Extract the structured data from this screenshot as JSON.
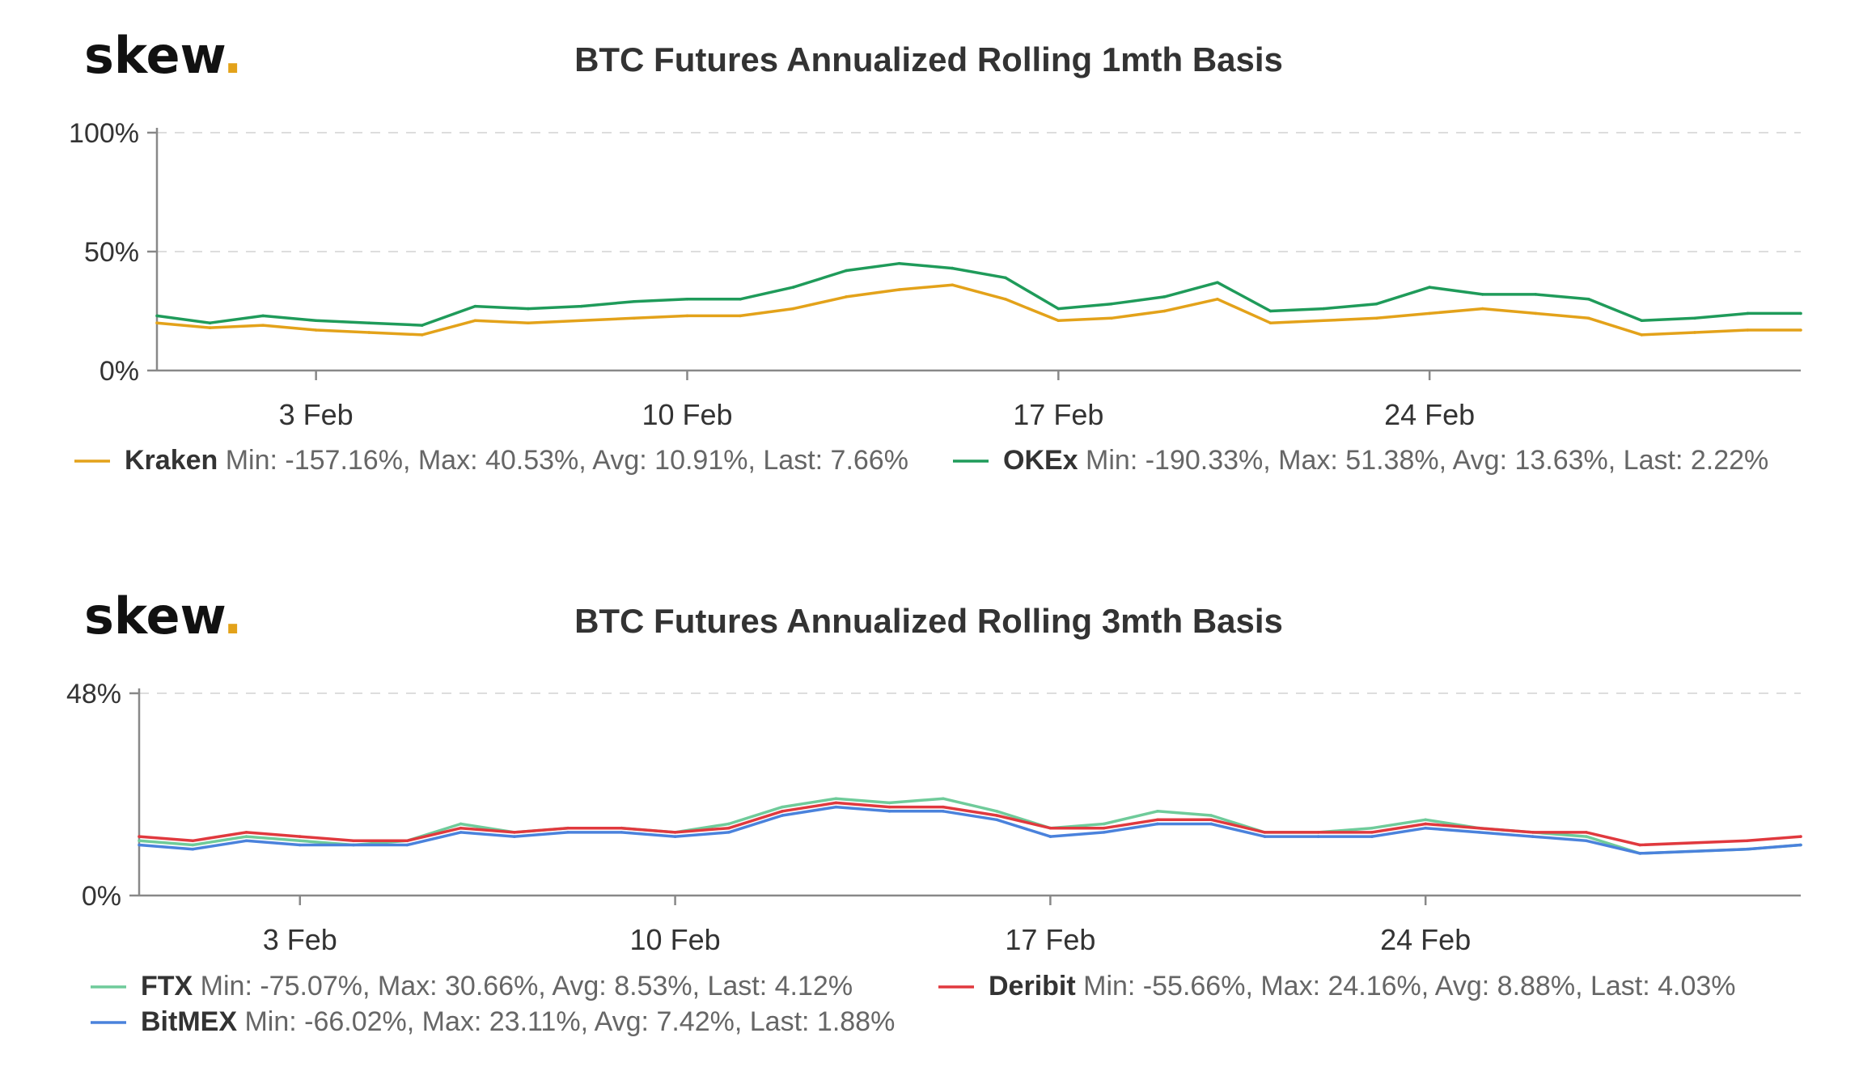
{
  "brand": {
    "word": "skew",
    "dot": "."
  },
  "colors": {
    "Kraken": "#e3a21a",
    "OKEx": "#1f9b5a",
    "FTX": "#6fcb9a",
    "Deribit": "#e0393e",
    "BitMEX": "#4a82dc"
  },
  "chart_data": [
    {
      "type": "line",
      "title": "BTC Futures Annualized Rolling 1mth Basis",
      "x_start": "2020-01-31",
      "x_end": "2020-03-02",
      "x_ticks": [
        "3 Feb",
        "10 Feb",
        "17 Feb",
        "24 Feb"
      ],
      "y_ticks": [
        "0%",
        "50%",
        "100%"
      ],
      "ylim": [
        0,
        100
      ],
      "grid": true,
      "legend_position": "bottom",
      "series": [
        {
          "name": "Kraken",
          "legend_text": "Min: -157.16%, Max: 40.53%, Avg: 10.91%, Last: 7.66%",
          "x": [
            "2020-01-31",
            "2020-02-01",
            "2020-02-02",
            "2020-02-03",
            "2020-02-04",
            "2020-02-05",
            "2020-02-06",
            "2020-02-07",
            "2020-02-08",
            "2020-02-09",
            "2020-02-10",
            "2020-02-11",
            "2020-02-12",
            "2020-02-13",
            "2020-02-14",
            "2020-02-15",
            "2020-02-16",
            "2020-02-17",
            "2020-02-18",
            "2020-02-19",
            "2020-02-20",
            "2020-02-21",
            "2020-02-22",
            "2020-02-23",
            "2020-02-24",
            "2020-02-25",
            "2020-02-26",
            "2020-02-27",
            "2020-02-28",
            "2020-02-29",
            "2020-03-01",
            "2020-03-02"
          ],
          "values": [
            20,
            18,
            19,
            17,
            16,
            15,
            21,
            20,
            21,
            22,
            23,
            23,
            26,
            31,
            34,
            36,
            30,
            21,
            22,
            25,
            30,
            20,
            21,
            22,
            24,
            26,
            24,
            22,
            15,
            16,
            17,
            17
          ]
        },
        {
          "name": "OKEx",
          "legend_text": "Min: -190.33%, Max: 51.38%, Avg: 13.63%, Last: 2.22%",
          "x": [
            "2020-01-31",
            "2020-02-01",
            "2020-02-02",
            "2020-02-03",
            "2020-02-04",
            "2020-02-05",
            "2020-02-06",
            "2020-02-07",
            "2020-02-08",
            "2020-02-09",
            "2020-02-10",
            "2020-02-11",
            "2020-02-12",
            "2020-02-13",
            "2020-02-14",
            "2020-02-15",
            "2020-02-16",
            "2020-02-17",
            "2020-02-18",
            "2020-02-19",
            "2020-02-20",
            "2020-02-21",
            "2020-02-22",
            "2020-02-23",
            "2020-02-24",
            "2020-02-25",
            "2020-02-26",
            "2020-02-27",
            "2020-02-28",
            "2020-02-29",
            "2020-03-01",
            "2020-03-02"
          ],
          "values": [
            23,
            20,
            23,
            21,
            20,
            19,
            27,
            26,
            27,
            29,
            30,
            30,
            35,
            42,
            45,
            43,
            39,
            26,
            28,
            31,
            37,
            25,
            26,
            28,
            35,
            32,
            32,
            30,
            21,
            22,
            24,
            24
          ]
        }
      ]
    },
    {
      "type": "line",
      "title": "BTC Futures Annualized Rolling 3mth Basis",
      "x_start": "2020-01-31",
      "x_end": "2020-03-02",
      "x_ticks": [
        "3 Feb",
        "10 Feb",
        "17 Feb",
        "24 Feb"
      ],
      "y_ticks": [
        "0%",
        "48%"
      ],
      "ylim": [
        0,
        48
      ],
      "grid": true,
      "legend_position": "bottom",
      "series": [
        {
          "name": "FTX",
          "legend_text": "Min: -75.07%, Max: 30.66%, Avg: 8.53%, Last: 4.12%",
          "x": [
            "2020-01-31",
            "2020-02-01",
            "2020-02-02",
            "2020-02-03",
            "2020-02-04",
            "2020-02-05",
            "2020-02-06",
            "2020-02-07",
            "2020-02-08",
            "2020-02-09",
            "2020-02-10",
            "2020-02-11",
            "2020-02-12",
            "2020-02-13",
            "2020-02-14",
            "2020-02-15",
            "2020-02-16",
            "2020-02-17",
            "2020-02-18",
            "2020-02-19",
            "2020-02-20",
            "2020-02-21",
            "2020-02-22",
            "2020-02-23",
            "2020-02-24",
            "2020-02-25",
            "2020-02-26",
            "2020-02-27",
            "2020-02-28",
            "2020-03-01",
            "2020-03-02"
          ],
          "values": [
            13,
            12,
            14,
            13,
            12,
            13,
            17,
            15,
            16,
            16,
            15,
            17,
            21,
            23,
            22,
            23,
            20,
            16,
            17,
            20,
            19,
            15,
            15,
            16,
            18,
            16,
            15,
            14,
            10,
            11,
            12
          ]
        },
        {
          "name": "Deribit",
          "legend_text": "Min: -55.66%, Max: 24.16%, Avg: 8.88%, Last: 4.03%",
          "x": [
            "2020-01-31",
            "2020-02-01",
            "2020-02-02",
            "2020-02-03",
            "2020-02-04",
            "2020-02-05",
            "2020-02-06",
            "2020-02-07",
            "2020-02-08",
            "2020-02-09",
            "2020-02-10",
            "2020-02-11",
            "2020-02-12",
            "2020-02-13",
            "2020-02-14",
            "2020-02-15",
            "2020-02-16",
            "2020-02-17",
            "2020-02-18",
            "2020-02-19",
            "2020-02-20",
            "2020-02-21",
            "2020-02-22",
            "2020-02-23",
            "2020-02-24",
            "2020-02-25",
            "2020-02-26",
            "2020-02-27",
            "2020-02-28",
            "2020-03-01",
            "2020-03-02"
          ],
          "values": [
            14,
            13,
            15,
            14,
            13,
            13,
            16,
            15,
            16,
            16,
            15,
            16,
            20,
            22,
            21,
            21,
            19,
            16,
            16,
            18,
            18,
            15,
            15,
            15,
            17,
            16,
            15,
            15,
            12,
            13,
            14
          ]
        },
        {
          "name": "BitMEX",
          "legend_text": "Min: -66.02%, Max: 23.11%, Avg: 7.42%, Last: 1.88%",
          "x": [
            "2020-01-31",
            "2020-02-01",
            "2020-02-02",
            "2020-02-03",
            "2020-02-04",
            "2020-02-05",
            "2020-02-06",
            "2020-02-07",
            "2020-02-08",
            "2020-02-09",
            "2020-02-10",
            "2020-02-11",
            "2020-02-12",
            "2020-02-13",
            "2020-02-14",
            "2020-02-15",
            "2020-02-16",
            "2020-02-17",
            "2020-02-18",
            "2020-02-19",
            "2020-02-20",
            "2020-02-21",
            "2020-02-22",
            "2020-02-23",
            "2020-02-24",
            "2020-02-25",
            "2020-02-26",
            "2020-02-27",
            "2020-02-28",
            "2020-03-01",
            "2020-03-02"
          ],
          "values": [
            12,
            11,
            13,
            12,
            12,
            12,
            15,
            14,
            15,
            15,
            14,
            15,
            19,
            21,
            20,
            20,
            18,
            14,
            15,
            17,
            17,
            14,
            14,
            14,
            16,
            15,
            14,
            13,
            10,
            11,
            12
          ]
        }
      ]
    }
  ]
}
